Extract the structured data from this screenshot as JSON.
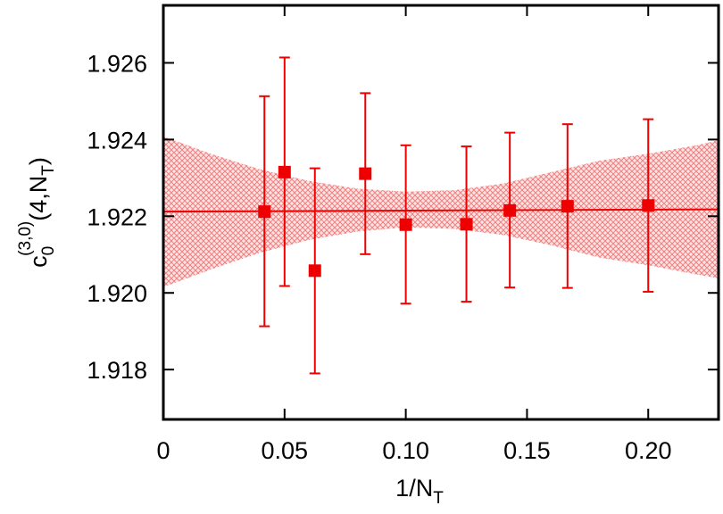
{
  "chart_data": {
    "type": "scatter",
    "xlabel": {
      "main": "1/N",
      "sub": "T"
    },
    "ylabel": {
      "c": "c",
      "sub": "0",
      "sup": "(3,0)",
      "arg_prefix": "(4,N",
      "arg_sub": "T",
      "arg_suffix": ")"
    },
    "xlim": [
      0,
      0.229
    ],
    "ylim": [
      1.9167,
      1.9275
    ],
    "x_ticks": [
      0,
      0.05,
      0.1,
      0.15,
      0.2
    ],
    "x_tick_labels": [
      "0",
      "0.05",
      "0.10",
      "0.15",
      "0.20"
    ],
    "y_ticks": [
      1.918,
      1.92,
      1.922,
      1.924,
      1.926
    ],
    "y_tick_labels": [
      "1.918",
      "1.920",
      "1.922",
      "1.924",
      "1.926"
    ],
    "grid": false,
    "legend": "none",
    "series": [
      {
        "color": "#ee0000",
        "marker": "filled-square",
        "x": [
          0.0417,
          0.05,
          0.0625,
          0.0833,
          0.1,
          0.125,
          0.1429,
          0.1667,
          0.2
        ],
        "y": [
          1.92212,
          1.92315,
          1.92058,
          1.92311,
          1.92178,
          1.92179,
          1.92215,
          1.92226,
          1.92228
        ],
        "err_low": [
          1.91913,
          1.92018,
          1.9179,
          1.92101,
          1.91972,
          1.91977,
          1.92014,
          1.92013,
          1.92003
        ],
        "err_high": [
          1.92513,
          1.92614,
          1.92325,
          1.92521,
          1.92385,
          1.92382,
          1.92418,
          1.9244,
          1.92453
        ]
      }
    ],
    "fit": {
      "type": "line",
      "color": "#ee0000",
      "x": [
        0,
        0.229
      ],
      "y": [
        1.92212,
        1.92218
      ]
    },
    "band": {
      "type": "area",
      "fill_color": "#f08080",
      "pattern": "crosshatch",
      "x": [
        0,
        0.02,
        0.04,
        0.06,
        0.08,
        0.1,
        0.12,
        0.14,
        0.16,
        0.18,
        0.2,
        0.22,
        0.229
      ],
      "lower": [
        1.92015,
        1.92062,
        1.92105,
        1.92138,
        1.9216,
        1.92171,
        1.92167,
        1.92151,
        1.92124,
        1.92092,
        1.92072,
        1.92048,
        1.92038
      ],
      "upper": [
        1.92408,
        1.92362,
        1.92322,
        1.92292,
        1.92272,
        1.92264,
        1.92268,
        1.92285,
        1.92315,
        1.92345,
        1.92363,
        1.92385,
        1.92398
      ]
    }
  }
}
